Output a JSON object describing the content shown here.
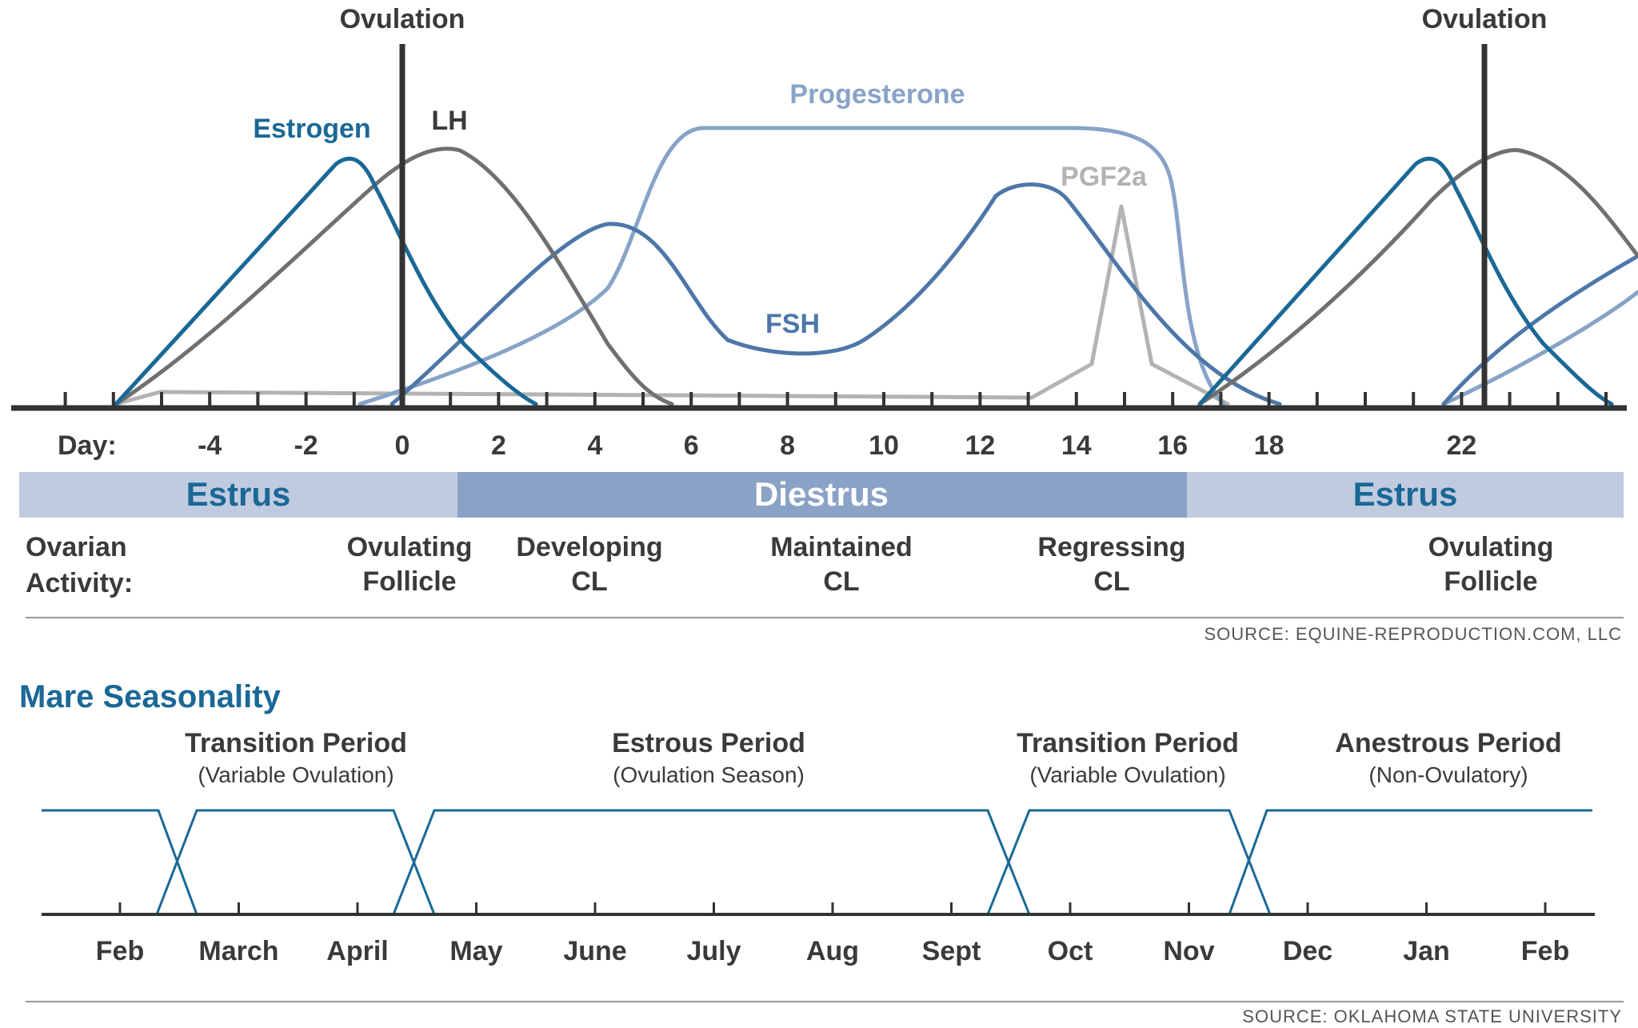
{
  "colors": {
    "estrogen": "#1a6896",
    "lh": "#707070",
    "progesterone": "#88a3c8",
    "fsh": "#4d77a9",
    "pgf2a": "#b3b3b3",
    "axis": "#333333",
    "estrus_bar": "#c0cbe0",
    "diestrus_bar": "#8aa2c6",
    "season_line": "#1a6896",
    "title": "#1a6896"
  },
  "cycle": {
    "ovulation_labels": [
      "Ovulation",
      "Ovulation"
    ],
    "hormone_labels": {
      "estrogen": "Estrogen",
      "lh": "LH",
      "progesterone": "Progesterone",
      "pgf2a": "PGF2a",
      "fsh": "FSH"
    },
    "day_label": "Day:",
    "day_ticks": [
      "-4",
      "-2",
      "0",
      "2",
      "4",
      "6",
      "8",
      "10",
      "12",
      "14",
      "16",
      "18",
      "22"
    ],
    "phases": [
      {
        "label": "Estrus"
      },
      {
        "label": "Diestrus"
      },
      {
        "label": "Estrus"
      }
    ],
    "ovarian_label": [
      "Ovarian",
      "Activity:"
    ],
    "ovarian_stages": [
      {
        "line1": "Ovulating",
        "line2": "Follicle"
      },
      {
        "line1": "Developing",
        "line2": "CL"
      },
      {
        "line1": "Maintained",
        "line2": "CL"
      },
      {
        "line1": "Regressing",
        "line2": "CL"
      },
      {
        "line1": "Ovulating",
        "line2": "Follicle"
      }
    ],
    "source": "SOURCE: EQUINE-REPRODUCTION.COM, LLC"
  },
  "seasonality": {
    "title": "Mare Seasonality",
    "periods": [
      {
        "title": "Transition Period",
        "subtitle": "(Variable Ovulation)"
      },
      {
        "title": "Estrous Period",
        "subtitle": "(Ovulation Season)"
      },
      {
        "title": "Transition Period",
        "subtitle": "(Variable Ovulation)"
      },
      {
        "title": "Anestrous Period",
        "subtitle": "(Non-Ovulatory)"
      }
    ],
    "months": [
      "Feb",
      "March",
      "April",
      "May",
      "June",
      "July",
      "Aug",
      "Sept",
      "Oct",
      "Nov",
      "Dec",
      "Jan",
      "Feb"
    ],
    "source": "SOURCE: OKLAHOMA STATE UNIVERSITY"
  }
}
